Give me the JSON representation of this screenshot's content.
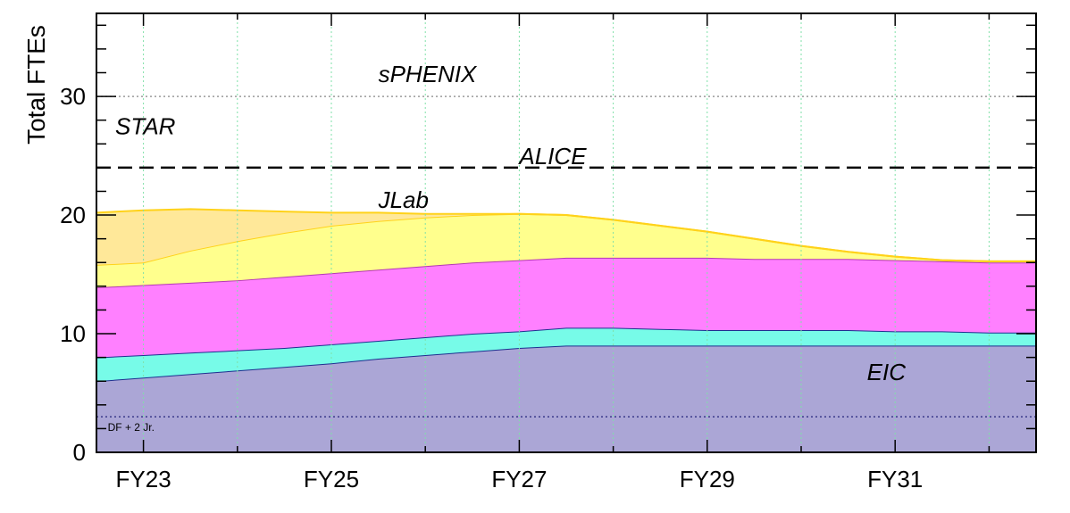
{
  "chart_data": {
    "type": "area",
    "ylabel": "Total FTEs",
    "xlabel": "",
    "ylim": [
      0,
      37
    ],
    "xlim": [
      2022.5,
      2032.5
    ],
    "yticks": [
      0,
      10,
      20,
      30
    ],
    "xticks": [
      {
        "x": 2023,
        "label": "FY23"
      },
      {
        "x": 2025,
        "label": "FY25"
      },
      {
        "x": 2027,
        "label": "FY27"
      },
      {
        "x": 2029,
        "label": "FY29"
      },
      {
        "x": 2031,
        "label": "FY31"
      }
    ],
    "x": [
      2022.5,
      2023,
      2023.5,
      2024,
      2024.5,
      2025,
      2025.5,
      2026,
      2026.5,
      2027,
      2027.5,
      2028,
      2028.5,
      2029,
      2029.5,
      2030,
      2030.5,
      2031,
      2031.5,
      2032,
      2032.5
    ],
    "stacked_tops": [
      {
        "key": "eic",
        "color": "#aba6d6",
        "edge": "#1f2f8f",
        "values": [
          6.0,
          6.3,
          6.6,
          6.9,
          7.2,
          7.5,
          7.9,
          8.2,
          8.5,
          8.8,
          9.0,
          9.0,
          9.0,
          9.0,
          9.0,
          9.0,
          9.0,
          9.0,
          9.0,
          9.0,
          9.0
        ]
      },
      {
        "key": "cyan",
        "color": "#77fbe8",
        "edge": "#1f2f8f",
        "values": [
          8.0,
          8.2,
          8.4,
          8.6,
          8.8,
          9.1,
          9.4,
          9.7,
          10.0,
          10.2,
          10.5,
          10.5,
          10.4,
          10.3,
          10.3,
          10.3,
          10.3,
          10.2,
          10.2,
          10.1,
          10.1
        ]
      },
      {
        "key": "magenta",
        "color": "#ff80ff",
        "edge": "#b33ab3",
        "values": [
          13.9,
          14.1,
          14.3,
          14.5,
          14.8,
          15.1,
          15.4,
          15.7,
          16.0,
          16.2,
          16.4,
          16.4,
          16.4,
          16.4,
          16.3,
          16.3,
          16.3,
          16.2,
          16.1,
          16.0,
          16.0
        ]
      },
      {
        "key": "yellow",
        "color": "#ffff8d",
        "edge": "#ffd21a",
        "values": [
          15.8,
          16.0,
          17.0,
          17.8,
          18.5,
          19.1,
          19.5,
          19.8,
          20.0,
          20.1,
          20.0,
          19.6,
          19.1,
          18.6,
          18.0,
          17.4,
          16.9,
          16.5,
          16.2,
          16.1,
          16.1
        ]
      },
      {
        "key": "orange",
        "color": "#ffe899",
        "edge": "#ffd21a",
        "values": [
          20.2,
          20.4,
          20.5,
          20.4,
          20.3,
          20.2,
          20.2,
          20.1,
          20.1,
          20.1,
          20.0,
          19.6,
          19.1,
          18.6,
          18.0,
          17.4,
          16.9,
          16.5,
          16.2,
          16.1,
          16.1
        ]
      }
    ],
    "reference_lines": [
      {
        "y": 24,
        "style": "dashed"
      },
      {
        "y": 30,
        "style": "dotted"
      },
      {
        "y": 3,
        "style": "dotted",
        "label": "DF + 2 Jr."
      }
    ],
    "annotations": [
      {
        "text": "sPHENIX",
        "x": 2025.5,
        "y": 31.2
      },
      {
        "text": "STAR",
        "x": 2022.7,
        "y": 26.8
      },
      {
        "text": "ALICE",
        "x": 2027.0,
        "y": 24.3
      },
      {
        "text": "JLab",
        "x": 2025.5,
        "y": 20.6
      },
      {
        "text": "EIC",
        "x": 2030.7,
        "y": 6.1
      }
    ],
    "grid": "x-major dotted",
    "legend": "none"
  }
}
